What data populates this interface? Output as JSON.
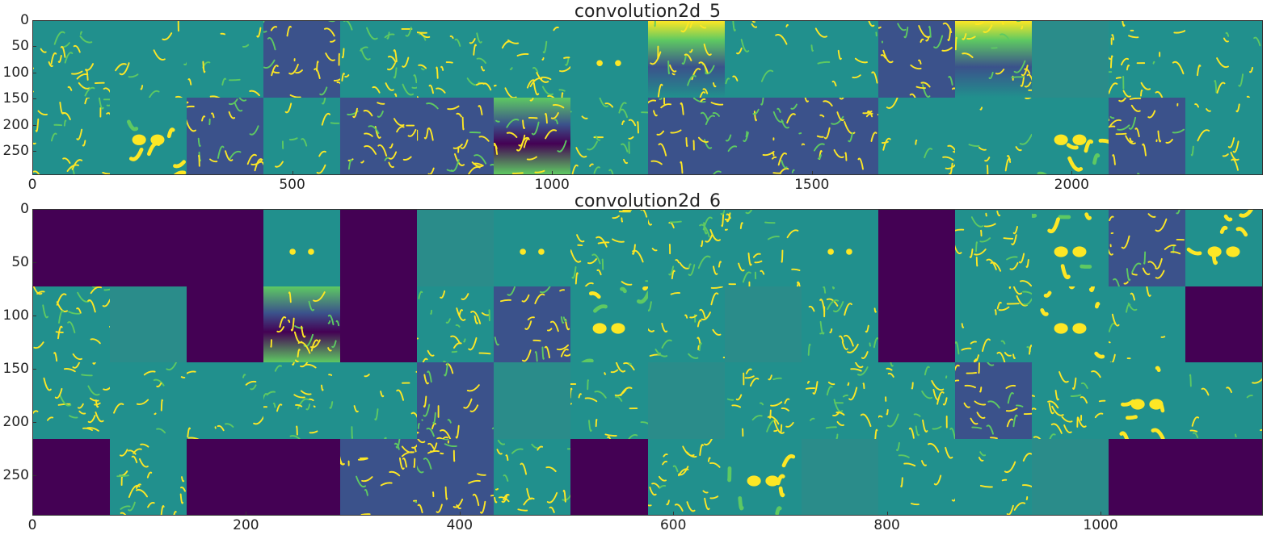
{
  "colors": {
    "background": "#ffffff",
    "dead_channel": "#440154",
    "low": "#3b528b",
    "mid": "#21908d",
    "mid_light": "#2a8c8a",
    "high": "#fde725",
    "bright": "#5ec962"
  },
  "chart_data": [
    {
      "type": "heatmap",
      "title": "convolution2d_5",
      "xlabel": "",
      "ylabel": "",
      "xlim": [
        0,
        2368
      ],
      "ylim": [
        296,
        0
      ],
      "x_ticks": [
        "0",
        "500",
        "1000",
        "1500",
        "2000"
      ],
      "x_tick_values": [
        0,
        500,
        1000,
        1500,
        2000
      ],
      "y_ticks": [
        "0",
        "50",
        "100",
        "150",
        "200",
        "250"
      ],
      "y_tick_values": [
        0,
        50,
        100,
        150,
        200,
        250
      ],
      "grid_rows": 2,
      "grid_cols": 16,
      "tile_size": 148,
      "colormap": "viridis",
      "tiles": [
        "edge",
        "sparse",
        "sparse",
        "texture",
        "edge",
        "edge",
        "edge",
        "eyes",
        "bright",
        "sparse",
        "sparse",
        "texture",
        "bright",
        "flat",
        "edge",
        "sparse",
        "edge",
        "blob",
        "texture",
        "sparse",
        "texture",
        "texture",
        "vivid",
        "edge",
        "texture",
        "texture",
        "texture",
        "sparse",
        "sparse",
        "blob",
        "texture",
        "sparse"
      ]
    },
    {
      "type": "heatmap",
      "title": "convolution2d_6",
      "xlabel": "",
      "ylabel": "",
      "xlim": [
        0,
        1152
      ],
      "ylim": [
        288,
        0
      ],
      "x_ticks": [
        "0",
        "200",
        "400",
        "600",
        "800",
        "1000"
      ],
      "x_tick_values": [
        0,
        200,
        400,
        600,
        800,
        1000
      ],
      "y_ticks": [
        "0",
        "50",
        "100",
        "150",
        "200",
        "250"
      ],
      "y_tick_values": [
        0,
        50,
        100,
        150,
        200,
        250
      ],
      "grid_rows": 4,
      "grid_cols": 16,
      "tile_size": 72,
      "colormap": "viridis",
      "tiles": [
        "dead",
        "dead",
        "dead",
        "eyes",
        "dead",
        "flat",
        "eyes",
        "edge",
        "edge",
        "edge",
        "eyes",
        "dead",
        "edge",
        "blob",
        "texture",
        "blob",
        "edge",
        "flat",
        "dead",
        "vivid",
        "dead",
        "edge",
        "texture",
        "blob",
        "edge",
        "flat",
        "edge",
        "dead",
        "edge",
        "blob",
        "sparse",
        "dead",
        "edge",
        "sparse",
        "sparse",
        "edge",
        "sparse",
        "texture",
        "flat",
        "edge",
        "flat",
        "edge",
        "edge",
        "edge",
        "texture",
        "edge",
        "blob",
        "sparse",
        "dead",
        "edge",
        "dead",
        "dead",
        "texture",
        "texture",
        "edge",
        "dead",
        "edge",
        "blob",
        "flat",
        "sparse",
        "sparse",
        "flat",
        "dead",
        "dead"
      ]
    }
  ]
}
